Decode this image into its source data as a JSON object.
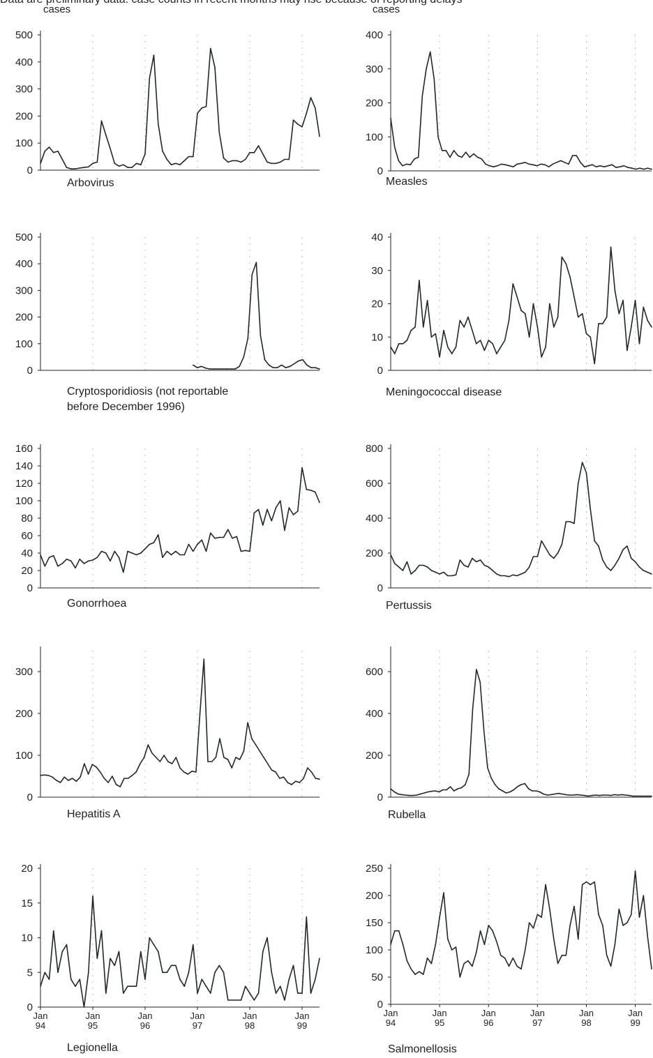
{
  "header_text": "Data are preliminary data: case counts in recent months may rise because of reporting delays",
  "panels": [
    {
      "id": "arbovirus",
      "label_lines": [
        "Arbovirus"
      ],
      "units": "cases",
      "yticks": [
        0,
        100,
        200,
        300,
        400,
        500
      ]
    },
    {
      "id": "measles",
      "label_lines": [
        "Measles"
      ],
      "units": "cases",
      "yticks": [
        0,
        100,
        200,
        300,
        400
      ]
    },
    {
      "id": "cryptosporidiosis",
      "label_lines": [
        "Cryptosporidiosis (not reportable",
        "before December 1996)"
      ],
      "units": "",
      "yticks": [
        0,
        100,
        200,
        300,
        400,
        500
      ]
    },
    {
      "id": "meningococcal",
      "label_lines": [
        "Meningococcal disease"
      ],
      "units": "",
      "yticks": [
        0,
        10,
        20,
        30,
        40
      ]
    },
    {
      "id": "gonorrhoea",
      "label_lines": [
        "Gonorrhoea"
      ],
      "units": "",
      "yticks": [
        0,
        20,
        40,
        60,
        80,
        100,
        120,
        140,
        160
      ]
    },
    {
      "id": "pertussis",
      "label_lines": [
        "Pertussis"
      ],
      "units": "",
      "yticks": [
        0,
        200,
        400,
        600,
        800
      ]
    },
    {
      "id": "hepatitis-a",
      "label_lines": [
        "Hepatitis A"
      ],
      "units": "",
      "yticks": [
        0,
        100,
        200,
        300
      ]
    },
    {
      "id": "rubella",
      "label_lines": [
        "Rubella"
      ],
      "units": "",
      "yticks": [
        0,
        200,
        400,
        600
      ]
    },
    {
      "id": "legionella",
      "label_lines": [
        "Legionella"
      ],
      "units": "",
      "yticks": [
        0,
        5,
        10,
        15,
        20
      ]
    },
    {
      "id": "salmonellosis",
      "label_lines": [
        "Salmonellosis"
      ],
      "units": "",
      "yticks": [
        0,
        50,
        100,
        150,
        200,
        250
      ]
    }
  ],
  "x_tick_labels": [
    [
      "Jan",
      "94"
    ],
    [
      "Jan",
      "95"
    ],
    [
      "Jan",
      "96"
    ],
    [
      "Jan",
      "97"
    ],
    [
      "Jan",
      "98"
    ],
    [
      "Jan",
      "99"
    ]
  ],
  "chart_data": [
    {
      "type": "line",
      "id": "arbovirus",
      "ylabel": "cases",
      "ylim": [
        0,
        500
      ],
      "x_start": "Jan 94",
      "values": [
        25,
        70,
        85,
        65,
        70,
        40,
        10,
        5,
        5,
        8,
        10,
        12,
        25,
        30,
        182,
        130,
        80,
        25,
        15,
        20,
        10,
        10,
        25,
        20,
        60,
        340,
        425,
        170,
        70,
        40,
        20,
        25,
        20,
        35,
        50,
        50,
        210,
        230,
        235,
        450,
        380,
        140,
        45,
        30,
        35,
        35,
        30,
        40,
        65,
        65,
        90,
        60,
        30,
        25,
        25,
        30,
        40,
        40,
        185,
        170,
        160,
        210,
        268,
        230,
        125
      ]
    },
    {
      "type": "line",
      "id": "measles",
      "ylabel": "cases",
      "ylim": [
        0,
        400
      ],
      "x_start": "Jan 94",
      "values": [
        155,
        70,
        30,
        15,
        20,
        18,
        35,
        40,
        220,
        300,
        350,
        270,
        100,
        60,
        60,
        40,
        60,
        45,
        40,
        55,
        40,
        50,
        40,
        35,
        20,
        15,
        12,
        15,
        20,
        18,
        15,
        12,
        20,
        22,
        25,
        20,
        18,
        15,
        20,
        18,
        12,
        20,
        25,
        30,
        25,
        20,
        45,
        45,
        25,
        12,
        15,
        18,
        12,
        15,
        12,
        15,
        18,
        10,
        12,
        15,
        10,
        8,
        5,
        8,
        5,
        8,
        5
      ]
    },
    {
      "type": "line",
      "id": "cryptosporidiosis",
      "ylim": [
        0,
        500
      ],
      "x_start": "Dec 96",
      "values": [
        20,
        10,
        15,
        8,
        5,
        5,
        5,
        5,
        5,
        5,
        5,
        15,
        50,
        120,
        360,
        405,
        130,
        40,
        20,
        10,
        10,
        20,
        10,
        15,
        25,
        35,
        40,
        20,
        10,
        10,
        5
      ]
    },
    {
      "type": "line",
      "id": "meningococcal",
      "ylim": [
        0,
        40
      ],
      "x_start": "Jan 94",
      "values": [
        7,
        5,
        8,
        8,
        9,
        12,
        13,
        27,
        13,
        21,
        10,
        11,
        4,
        12,
        7,
        5,
        7,
        15,
        13,
        16,
        12,
        8,
        9,
        6,
        9,
        8,
        5,
        7,
        9,
        15,
        26,
        22,
        18,
        17,
        10,
        20,
        13,
        4,
        7,
        20,
        13,
        16,
        34,
        32,
        28,
        22,
        16,
        17,
        11,
        10,
        2,
        14,
        14,
        16,
        37,
        24,
        17,
        21,
        6,
        13,
        21,
        8,
        19,
        15,
        13
      ]
    },
    {
      "type": "line",
      "id": "gonorrhoea",
      "ylim": [
        0,
        160
      ],
      "x_start": "Jan 94",
      "values": [
        38,
        25,
        35,
        37,
        25,
        28,
        33,
        31,
        23,
        33,
        28,
        31,
        32,
        35,
        42,
        40,
        31,
        42,
        35,
        18,
        42,
        40,
        38,
        40,
        45,
        50,
        52,
        61,
        35,
        42,
        38,
        42,
        38,
        38,
        50,
        42,
        50,
        55,
        42,
        63,
        57,
        58,
        58,
        67,
        57,
        59,
        42,
        43,
        42,
        86,
        90,
        72,
        90,
        77,
        92,
        100,
        66,
        92,
        84,
        88,
        138,
        113,
        112,
        110,
        98
      ]
    },
    {
      "type": "line",
      "id": "pertussis",
      "ylim": [
        0,
        800
      ],
      "x_start": "Jan 94",
      "values": [
        190,
        140,
        120,
        100,
        150,
        80,
        100,
        130,
        130,
        120,
        100,
        90,
        80,
        90,
        70,
        70,
        75,
        160,
        130,
        120,
        170,
        150,
        160,
        130,
        120,
        100,
        80,
        70,
        70,
        65,
        75,
        70,
        80,
        90,
        120,
        180,
        180,
        270,
        230,
        190,
        170,
        200,
        250,
        380,
        380,
        370,
        600,
        720,
        660,
        450,
        270,
        240,
        160,
        120,
        100,
        130,
        170,
        220,
        240,
        170,
        150,
        120,
        100,
        90,
        80
      ]
    },
    {
      "type": "line",
      "id": "hepatitis-a",
      "ylim": [
        0,
        350
      ],
      "x_start": "Jan 94",
      "values": [
        52,
        53,
        52,
        48,
        40,
        35,
        48,
        40,
        45,
        38,
        48,
        80,
        55,
        78,
        72,
        60,
        45,
        35,
        50,
        30,
        25,
        45,
        45,
        52,
        60,
        80,
        95,
        125,
        105,
        95,
        85,
        100,
        85,
        80,
        95,
        70,
        60,
        55,
        62,
        60,
        200,
        330,
        85,
        85,
        95,
        140,
        95,
        90,
        70,
        95,
        90,
        110,
        178,
        140,
        125,
        110,
        95,
        80,
        65,
        60,
        45,
        48,
        35,
        30,
        38,
        35,
        45,
        70,
        60,
        45,
        43
      ]
    },
    {
      "type": "line",
      "id": "rubella",
      "ylim": [
        0,
        700
      ],
      "x_start": "Jan 94",
      "values": [
        40,
        25,
        15,
        12,
        10,
        8,
        8,
        10,
        15,
        20,
        25,
        28,
        30,
        25,
        35,
        35,
        50,
        30,
        40,
        45,
        60,
        110,
        420,
        610,
        550,
        320,
        140,
        90,
        60,
        40,
        30,
        20,
        25,
        35,
        50,
        60,
        65,
        40,
        30,
        30,
        25,
        15,
        10,
        12,
        15,
        18,
        15,
        12,
        10,
        10,
        12,
        10,
        8,
        5,
        8,
        10,
        8,
        10,
        10,
        8,
        12,
        10,
        12,
        10,
        8,
        5,
        5,
        5,
        5,
        5,
        5
      ]
    },
    {
      "type": "line",
      "id": "legionella",
      "ylim": [
        0,
        20
      ],
      "x_start": "Jan 94",
      "values": [
        3,
        5,
        4,
        11,
        5,
        8,
        9,
        4,
        3,
        4,
        0,
        5,
        16,
        7,
        11,
        2,
        7,
        6,
        8,
        2,
        3,
        3,
        3,
        8,
        4,
        10,
        9,
        8,
        5,
        5,
        6,
        6,
        4,
        3,
        5,
        9,
        2,
        4,
        3,
        2,
        5,
        6,
        5,
        1,
        1,
        1,
        1,
        3,
        2,
        1,
        2,
        8,
        10,
        5,
        2,
        3,
        1,
        4,
        6,
        2,
        2,
        13,
        2,
        4,
        7
      ]
    },
    {
      "type": "line",
      "id": "salmonellosis",
      "ylim": [
        0,
        250
      ],
      "x_start": "Jan 94",
      "values": [
        110,
        135,
        135,
        110,
        80,
        65,
        55,
        60,
        55,
        85,
        75,
        110,
        160,
        205,
        120,
        100,
        105,
        50,
        75,
        80,
        70,
        95,
        135,
        110,
        145,
        135,
        115,
        90,
        85,
        70,
        85,
        70,
        65,
        100,
        150,
        140,
        165,
        160,
        220,
        175,
        120,
        75,
        90,
        90,
        145,
        180,
        120,
        220,
        225,
        220,
        225,
        165,
        145,
        90,
        70,
        110,
        175,
        145,
        150,
        165,
        245,
        160,
        200,
        125,
        65
      ]
    }
  ]
}
